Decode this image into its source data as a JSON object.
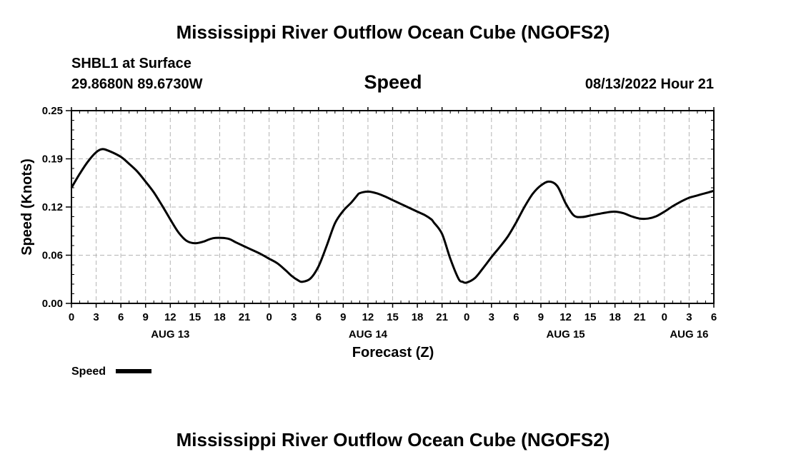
{
  "page": {
    "title": "Mississippi River Outflow Ocean Cube (NGOFS2)",
    "footer_title": "Mississippi River Outflow Ocean Cube (NGOFS2)"
  },
  "station": {
    "name": "SHBL1 at Surface",
    "coords": "29.8680N  89.6730W",
    "datetime": "08/13/2022 Hour 21"
  },
  "chart_data": {
    "type": "line",
    "title": "Speed",
    "xlabel": "Forecast (Z)",
    "ylabel": "Speed (Knots)",
    "xlim": [
      0,
      78
    ],
    "ylim": [
      0,
      0.25
    ],
    "grid": true,
    "yticks": [
      {
        "value": 0,
        "label": "0.00"
      },
      {
        "value": 0.0625,
        "label": "0.06"
      },
      {
        "value": 0.125,
        "label": "0.12"
      },
      {
        "value": 0.1875,
        "label": "0.19"
      },
      {
        "value": 0.25,
        "label": "0.25"
      }
    ],
    "xticks": [
      {
        "value": 0,
        "label": "0"
      },
      {
        "value": 3,
        "label": "3"
      },
      {
        "value": 6,
        "label": "6"
      },
      {
        "value": 9,
        "label": "9"
      },
      {
        "value": 12,
        "label": "12"
      },
      {
        "value": 15,
        "label": "15"
      },
      {
        "value": 18,
        "label": "18"
      },
      {
        "value": 21,
        "label": "21"
      },
      {
        "value": 24,
        "label": "0"
      },
      {
        "value": 27,
        "label": "3"
      },
      {
        "value": 30,
        "label": "6"
      },
      {
        "value": 33,
        "label": "9"
      },
      {
        "value": 36,
        "label": "12"
      },
      {
        "value": 39,
        "label": "15"
      },
      {
        "value": 42,
        "label": "18"
      },
      {
        "value": 45,
        "label": "21"
      },
      {
        "value": 48,
        "label": "0"
      },
      {
        "value": 51,
        "label": "3"
      },
      {
        "value": 54,
        "label": "6"
      },
      {
        "value": 57,
        "label": "9"
      },
      {
        "value": 60,
        "label": "12"
      },
      {
        "value": 63,
        "label": "15"
      },
      {
        "value": 66,
        "label": "18"
      },
      {
        "value": 69,
        "label": "21"
      },
      {
        "value": 72,
        "label": "0"
      },
      {
        "value": 75,
        "label": "3"
      },
      {
        "value": 78,
        "label": "6"
      }
    ],
    "date_labels": [
      {
        "value": 12,
        "label": "AUG 13"
      },
      {
        "value": 36,
        "label": "AUG 14"
      },
      {
        "value": 60,
        "label": "AUG 15"
      },
      {
        "value": 75,
        "label": "AUG 16"
      }
    ],
    "legend": "bottom-left",
    "series": [
      {
        "name": "Speed",
        "color": "#000000",
        "x": [
          0,
          1,
          2,
          3,
          3.7,
          4.5,
          6,
          7,
          8,
          9,
          10,
          11,
          12,
          13,
          14,
          15,
          16,
          16.7,
          17.5,
          19,
          20,
          21,
          22,
          23,
          24,
          25,
          26,
          26.7,
          27.5,
          28,
          29,
          30,
          31,
          32,
          33,
          34,
          34.7,
          35,
          36,
          37,
          38,
          39,
          40,
          41,
          42,
          43,
          43.7,
          44,
          45,
          46,
          47,
          47.5,
          48,
          49,
          50,
          51,
          52,
          53,
          54,
          55,
          56,
          57,
          58,
          59,
          60,
          61,
          62,
          63,
          64,
          65,
          66,
          67,
          68,
          69,
          70,
          71,
          72,
          73,
          74,
          75,
          76,
          77,
          78
        ],
        "values": [
          0.15,
          0.168,
          0.184,
          0.196,
          0.2,
          0.198,
          0.19,
          0.181,
          0.171,
          0.158,
          0.144,
          0.127,
          0.109,
          0.092,
          0.081,
          0.078,
          0.08,
          0.083,
          0.085,
          0.084,
          0.079,
          0.074,
          0.069,
          0.064,
          0.058,
          0.052,
          0.043,
          0.036,
          0.03,
          0.028,
          0.032,
          0.048,
          0.075,
          0.104,
          0.12,
          0.131,
          0.14,
          0.143,
          0.145,
          0.143,
          0.139,
          0.134,
          0.129,
          0.124,
          0.119,
          0.114,
          0.109,
          0.105,
          0.09,
          0.058,
          0.032,
          0.028,
          0.027,
          0.033,
          0.046,
          0.06,
          0.073,
          0.087,
          0.105,
          0.125,
          0.142,
          0.153,
          0.158,
          0.152,
          0.13,
          0.114,
          0.112,
          0.114,
          0.116,
          0.118,
          0.119,
          0.117,
          0.113,
          0.11,
          0.11,
          0.113,
          0.119,
          0.126,
          0.132,
          0.137,
          0.14,
          0.143,
          0.146
        ]
      }
    ]
  }
}
